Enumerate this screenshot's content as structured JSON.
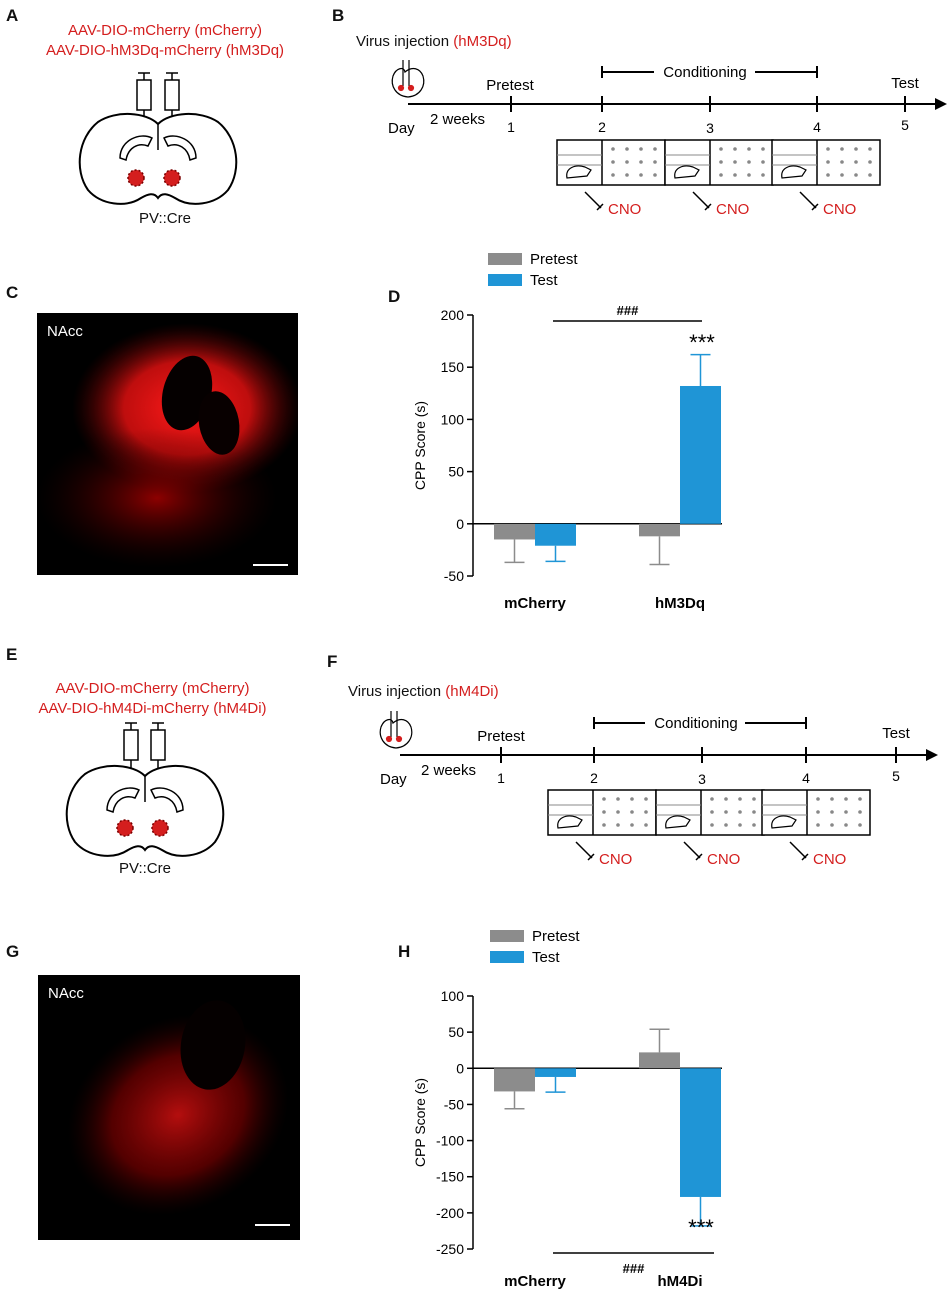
{
  "panels": {
    "A": {
      "letter": "A",
      "line1": "AAV-DIO-mCherry (mCherry)",
      "line2": "AAV-DIO-hM3Dq-mCherry (hM3Dq)",
      "cre": "PV::Cre"
    },
    "B": {
      "letter": "B",
      "injection": "Virus injection",
      "injection_tag": "(hM3Dq)",
      "pretest": "Pretest",
      "conditioning": "Conditioning",
      "test": "Test",
      "day": "Day",
      "weeks": "2 weeks",
      "days": [
        "1",
        "2",
        "3",
        "4",
        "5"
      ],
      "cno": "CNO"
    },
    "C": {
      "letter": "C",
      "label": "NAcc"
    },
    "D": {
      "letter": "D"
    },
    "E": {
      "letter": "E",
      "line1": "AAV-DIO-mCherry (mCherry)",
      "line2": "AAV-DIO-hM4Di-mCherry (hM4Di)",
      "cre": "PV::Cre"
    },
    "F": {
      "letter": "F",
      "injection": "Virus injection",
      "injection_tag": "(hM4Di)",
      "pretest": "Pretest",
      "conditioning": "Conditioning",
      "test": "Test",
      "day": "Day",
      "weeks": "2 weeks",
      "days": [
        "1",
        "2",
        "3",
        "4",
        "5"
      ],
      "cno": "CNO"
    },
    "G": {
      "letter": "G",
      "label": "NAcc"
    },
    "H": {
      "letter": "H"
    }
  },
  "colors": {
    "pretest": "#8c8c8c",
    "test": "#1f95d6",
    "red_text": "#d41e1e"
  },
  "chart_data": [
    {
      "id": "D",
      "type": "bar",
      "ylabel": "CPP Score (s)",
      "ylim": [
        -50,
        200
      ],
      "yticks": [
        -50,
        0,
        50,
        100,
        150,
        200
      ],
      "categories": [
        "mCherry",
        "hM3Dq"
      ],
      "series": [
        {
          "name": "Pretest",
          "values": [
            -15,
            -12
          ],
          "errors": [
            22,
            27
          ]
        },
        {
          "name": "Test",
          "values": [
            -21,
            132
          ],
          "errors": [
            15,
            30
          ]
        }
      ],
      "legend": {
        "position": "top"
      },
      "annotations": {
        "significance": "***",
        "comparison": "###"
      }
    },
    {
      "id": "H",
      "type": "bar",
      "ylabel": "CPP Score (s)",
      "ylim": [
        -250,
        100
      ],
      "yticks": [
        -250,
        -200,
        -150,
        -100,
        -50,
        0,
        50,
        100
      ],
      "categories": [
        "mCherry",
        "hM4Di"
      ],
      "series": [
        {
          "name": "Pretest",
          "values": [
            -32,
            22
          ],
          "errors": [
            24,
            32
          ]
        },
        {
          "name": "Test",
          "values": [
            -12,
            -178
          ],
          "errors": [
            21,
            40
          ]
        }
      ],
      "legend": {
        "position": "top"
      },
      "annotations": {
        "significance": "***",
        "comparison": "###"
      }
    }
  ]
}
